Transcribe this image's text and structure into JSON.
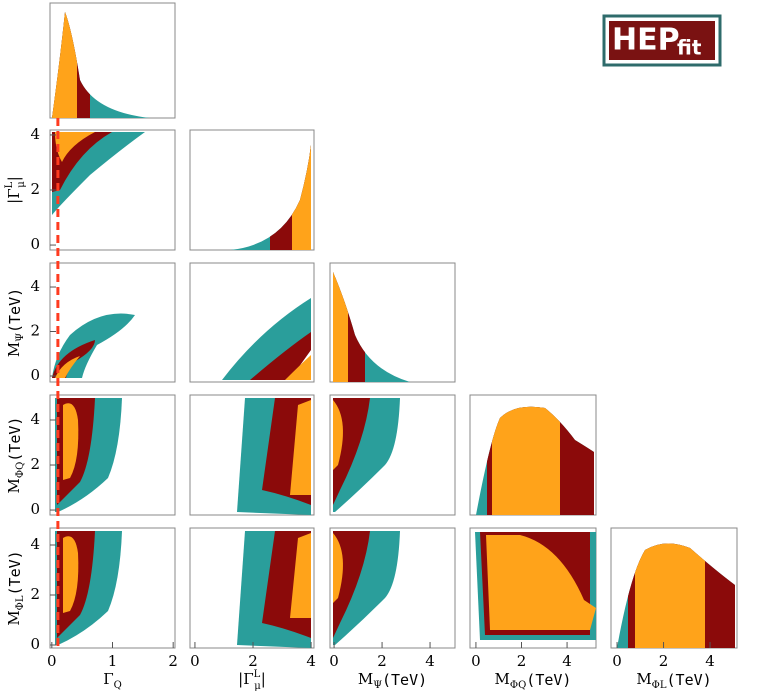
{
  "chart_data": {
    "type": "corner",
    "logo": {
      "main": "HEP",
      "sub": "fit"
    },
    "colors": {
      "outer": "#2a9e9b",
      "middle": "#8b0a0a",
      "inner": "#ffa31a",
      "reference": "#ff3b1f"
    },
    "reference_x": 0.1,
    "columns": [
      {
        "label": {
          "text": "Γ",
          "sub": "Q"
        },
        "xlim": [
          -0.03,
          2.03
        ],
        "xticks": [
          0,
          1,
          2
        ]
      },
      {
        "label": {
          "text": "|Γ",
          "sup": "L",
          "sub": "μ",
          "close": "|"
        },
        "xlim": [
          -0.17,
          4.1
        ],
        "xticks": [
          0,
          2,
          4
        ]
      },
      {
        "label": {
          "text": "M",
          "sub": "Ψ",
          "unit": "(TeV)"
        },
        "xlim": [
          -0.17,
          5.04
        ],
        "xticks": [
          0,
          2,
          4
        ]
      },
      {
        "label": {
          "text": "M",
          "sub": "ΦQ",
          "unit": "(TeV)"
        },
        "xlim": [
          -0.26,
          5.27
        ],
        "xticks": [
          0,
          2,
          4
        ]
      },
      {
        "label": {
          "text": "M",
          "sub": "ΦL",
          "unit": "(TeV)"
        },
        "xlim": [
          -0.26,
          5.16
        ],
        "xticks": [
          0,
          2,
          4
        ]
      }
    ],
    "rows": [
      {
        "label": {
          "text": "|Γ",
          "sup": "L",
          "sub": "μ",
          "close": "|"
        },
        "ylim": [
          -0.18,
          4.18
        ],
        "yticks": [
          0,
          2,
          4
        ]
      },
      {
        "label": {
          "text": "M",
          "sub": "Ψ",
          "unit": "(TeV)"
        },
        "ylim": [
          -0.27,
          5.08
        ],
        "yticks": [
          0,
          2,
          4
        ]
      },
      {
        "label": {
          "text": "M",
          "sub": "ΦQ",
          "unit": "(TeV)"
        },
        "ylim": [
          -0.22,
          5.11
        ],
        "yticks": [
          0,
          2,
          4
        ]
      },
      {
        "label": {
          "text": "M",
          "sub": "ΦL",
          "unit": "(TeV)"
        },
        "ylim": [
          -0.12,
          4.68
        ],
        "yticks": [
          0,
          2,
          4
        ]
      }
    ]
  }
}
